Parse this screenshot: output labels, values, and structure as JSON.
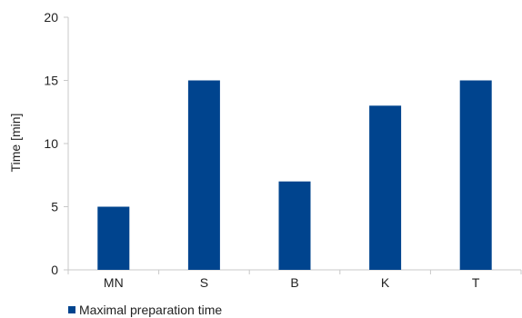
{
  "chart_data": {
    "type": "bar",
    "title": "",
    "xlabel": "",
    "ylabel": "Time [min]",
    "categories": [
      "MN",
      "S",
      "B",
      "K",
      "T"
    ],
    "series": [
      {
        "name": "Maximal preparation time",
        "values": [
          5,
          15,
          7,
          13,
          15
        ],
        "color": "#00448e"
      }
    ],
    "ylim": [
      0,
      20
    ],
    "yticks": [
      0,
      5,
      10,
      15,
      20
    ],
    "grid": false,
    "legend": "bottom-left"
  }
}
